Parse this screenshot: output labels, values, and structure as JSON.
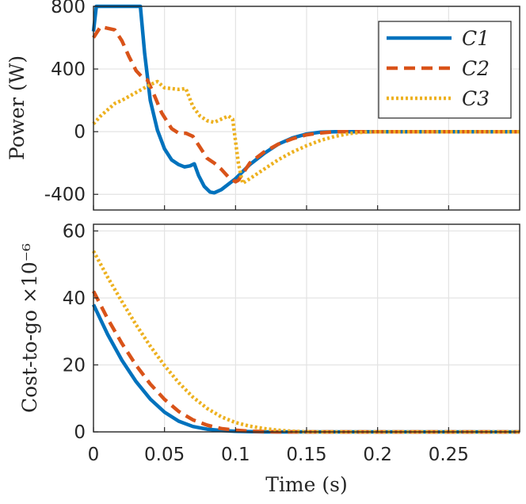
{
  "chart_data": [
    {
      "type": "line",
      "xlabel": "",
      "ylabel": "Power (W)",
      "xlim": [
        0,
        0.3
      ],
      "ylim": [
        -500,
        800
      ],
      "x_ticks": [
        "0",
        "0.05",
        "0.1",
        "0.15",
        "0.2",
        "0.25"
      ],
      "y_ticks": [
        "800",
        "400",
        "0",
        "-400"
      ],
      "grid": true,
      "legend_position": "top-right",
      "series": [
        {
          "name": "C1",
          "color": "#0072bd",
          "style": "solid",
          "points": [
            [
              0,
              640
            ],
            [
              0.002,
              800
            ],
            [
              0.033,
              800
            ],
            [
              0.036,
              500
            ],
            [
              0.04,
              200
            ],
            [
              0.045,
              10
            ],
            [
              0.05,
              -110
            ],
            [
              0.055,
              -180
            ],
            [
              0.06,
              -210
            ],
            [
              0.064,
              -225
            ],
            [
              0.068,
              -218
            ],
            [
              0.071,
              -205
            ],
            [
              0.074,
              -280
            ],
            [
              0.078,
              -350
            ],
            [
              0.082,
              -385
            ],
            [
              0.085,
              -390
            ],
            [
              0.09,
              -370
            ],
            [
              0.1,
              -300
            ],
            [
              0.11,
              -210
            ],
            [
              0.12,
              -140
            ],
            [
              0.13,
              -80
            ],
            [
              0.14,
              -40
            ],
            [
              0.15,
              -15
            ],
            [
              0.16,
              -3
            ],
            [
              0.17,
              0
            ],
            [
              0.3,
              0
            ]
          ]
        },
        {
          "name": "C2",
          "color": "#d95319",
          "style": "dashed",
          "points": [
            [
              0,
              600
            ],
            [
              0.005,
              670
            ],
            [
              0.015,
              650
            ],
            [
              0.02,
              580
            ],
            [
              0.025,
              480
            ],
            [
              0.03,
              390
            ],
            [
              0.035,
              340
            ],
            [
              0.038,
              330
            ],
            [
              0.042,
              250
            ],
            [
              0.048,
              120
            ],
            [
              0.055,
              20
            ],
            [
              0.06,
              -10
            ],
            [
              0.065,
              -10
            ],
            [
              0.07,
              -30
            ],
            [
              0.075,
              -100
            ],
            [
              0.08,
              -170
            ],
            [
              0.085,
              -200
            ],
            [
              0.09,
              -240
            ],
            [
              0.095,
              -290
            ],
            [
              0.1,
              -320
            ],
            [
              0.102,
              -310
            ],
            [
              0.11,
              -200
            ],
            [
              0.12,
              -130
            ],
            [
              0.13,
              -80
            ],
            [
              0.14,
              -45
            ],
            [
              0.15,
              -20
            ],
            [
              0.16,
              -8
            ],
            [
              0.17,
              0
            ],
            [
              0.3,
              0
            ]
          ]
        },
        {
          "name": "C3",
          "color": "#edb120",
          "style": "dotted",
          "points": [
            [
              0,
              50
            ],
            [
              0.005,
              100
            ],
            [
              0.015,
              180
            ],
            [
              0.02,
              200
            ],
            [
              0.03,
              250
            ],
            [
              0.04,
              300
            ],
            [
              0.045,
              320
            ],
            [
              0.05,
              280
            ],
            [
              0.06,
              270
            ],
            [
              0.065,
              275
            ],
            [
              0.07,
              160
            ],
            [
              0.075,
              100
            ],
            [
              0.08,
              70
            ],
            [
              0.085,
              60
            ],
            [
              0.09,
              80
            ],
            [
              0.095,
              100
            ],
            [
              0.098,
              80
            ],
            [
              0.102,
              -200
            ],
            [
              0.105,
              -330
            ],
            [
              0.11,
              -300
            ],
            [
              0.12,
              -240
            ],
            [
              0.13,
              -180
            ],
            [
              0.14,
              -130
            ],
            [
              0.15,
              -90
            ],
            [
              0.16,
              -55
            ],
            [
              0.17,
              -30
            ],
            [
              0.18,
              -12
            ],
            [
              0.19,
              -3
            ],
            [
              0.2,
              0
            ],
            [
              0.3,
              0
            ]
          ]
        }
      ]
    },
    {
      "type": "line",
      "xlabel": "Time (s)",
      "ylabel": "Cost-to-go ×10⁻⁶",
      "xlim": [
        0,
        0.3
      ],
      "ylim": [
        0,
        62
      ],
      "x_ticks": [
        "0",
        "0.05",
        "0.1",
        "0.15",
        "0.2",
        "0.25"
      ],
      "y_ticks": [
        "60",
        "40",
        "20",
        "0"
      ],
      "grid": true,
      "series": [
        {
          "name": "C1",
          "color": "#0072bd",
          "style": "solid",
          "points": [
            [
              0,
              38
            ],
            [
              0.01,
              29.1
            ],
            [
              0.02,
              21.4
            ],
            [
              0.03,
              15.0
            ],
            [
              0.04,
              9.8
            ],
            [
              0.05,
              5.9
            ],
            [
              0.06,
              3.2
            ],
            [
              0.07,
              1.6
            ],
            [
              0.08,
              0.8
            ],
            [
              0.09,
              0.4
            ],
            [
              0.1,
              0.2
            ],
            [
              0.11,
              0.1
            ],
            [
              0.12,
              0
            ],
            [
              0.3,
              0
            ]
          ]
        },
        {
          "name": "C2",
          "color": "#d95319",
          "style": "dashed",
          "points": [
            [
              0,
              42
            ],
            [
              0.01,
              33.8
            ],
            [
              0.02,
              26.4
            ],
            [
              0.03,
              19.9
            ],
            [
              0.04,
              14.3
            ],
            [
              0.05,
              9.7
            ],
            [
              0.06,
              6.1
            ],
            [
              0.07,
              3.6
            ],
            [
              0.08,
              2.0
            ],
            [
              0.09,
              1.0
            ],
            [
              0.1,
              0.5
            ],
            [
              0.11,
              0.2
            ],
            [
              0.12,
              0.1
            ],
            [
              0.13,
              0
            ],
            [
              0.3,
              0
            ]
          ]
        },
        {
          "name": "C3",
          "color": "#edb120",
          "style": "dotted",
          "points": [
            [
              0,
              54
            ],
            [
              0.01,
              46.2
            ],
            [
              0.02,
              38.9
            ],
            [
              0.03,
              32.0
            ],
            [
              0.04,
              25.6
            ],
            [
              0.05,
              19.8
            ],
            [
              0.06,
              14.7
            ],
            [
              0.07,
              10.4
            ],
            [
              0.08,
              7.0
            ],
            [
              0.09,
              4.5
            ],
            [
              0.1,
              2.8
            ],
            [
              0.11,
              1.7
            ],
            [
              0.12,
              1.0
            ],
            [
              0.13,
              0.5
            ],
            [
              0.14,
              0.2
            ],
            [
              0.15,
              0.05
            ],
            [
              0.16,
              0
            ],
            [
              0.3,
              0
            ]
          ]
        }
      ]
    }
  ]
}
